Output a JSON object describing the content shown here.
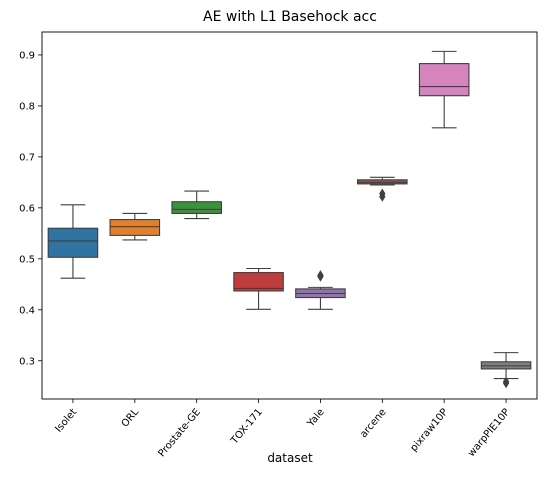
{
  "chart_data": {
    "type": "box",
    "title": "AE with L1 Basehock acc",
    "xlabel": "dataset",
    "ylabel": "",
    "ylim": [
      0.225,
      0.945
    ],
    "yticks": [
      "0.3",
      "0.4",
      "0.5",
      "0.6",
      "0.7",
      "0.8",
      "0.9"
    ],
    "grid": false,
    "categories": [
      "Isolet",
      "ORL",
      "Prostate-GE",
      "TOX-171",
      "Yale",
      "arcene",
      "pixraw10P",
      "warpPIE10P"
    ],
    "boxes": [
      {
        "name": "Isolet",
        "color": "#3274a1",
        "whisker_low": 0.462,
        "q1": 0.503,
        "median": 0.535,
        "q3": 0.56,
        "whisker_high": 0.606,
        "outliers": []
      },
      {
        "name": "ORL",
        "color": "#e1812c",
        "whisker_low": 0.537,
        "q1": 0.546,
        "median": 0.563,
        "q3": 0.577,
        "whisker_high": 0.589,
        "outliers": []
      },
      {
        "name": "Prostate-GE",
        "color": "#3a923a",
        "whisker_low": 0.579,
        "q1": 0.589,
        "median": 0.597,
        "q3": 0.612,
        "whisker_high": 0.633,
        "outliers": []
      },
      {
        "name": "TOX-171",
        "color": "#c03d3e",
        "whisker_low": 0.401,
        "q1": 0.437,
        "median": 0.442,
        "q3": 0.473,
        "whisker_high": 0.481,
        "outliers": []
      },
      {
        "name": "Yale",
        "color": "#9372b2",
        "whisker_low": 0.401,
        "q1": 0.424,
        "median": 0.432,
        "q3": 0.441,
        "whisker_high": 0.444,
        "outliers": [
          0.465,
          0.468
        ]
      },
      {
        "name": "arcene",
        "color": "#845b53",
        "whisker_low": 0.645,
        "q1": 0.647,
        "median": 0.65,
        "q3": 0.655,
        "whisker_high": 0.66,
        "outliers": [
          0.622,
          0.628
        ]
      },
      {
        "name": "pixraw10P",
        "color": "#d684bd",
        "whisker_low": 0.757,
        "q1": 0.82,
        "median": 0.838,
        "q3": 0.883,
        "whisker_high": 0.907,
        "outliers": []
      },
      {
        "name": "warpPIE10P",
        "color": "#7f7f7f",
        "whisker_low": 0.265,
        "q1": 0.284,
        "median": 0.29,
        "q3": 0.298,
        "whisker_high": 0.316,
        "outliers": [
          0.256,
          0.259
        ]
      }
    ]
  }
}
